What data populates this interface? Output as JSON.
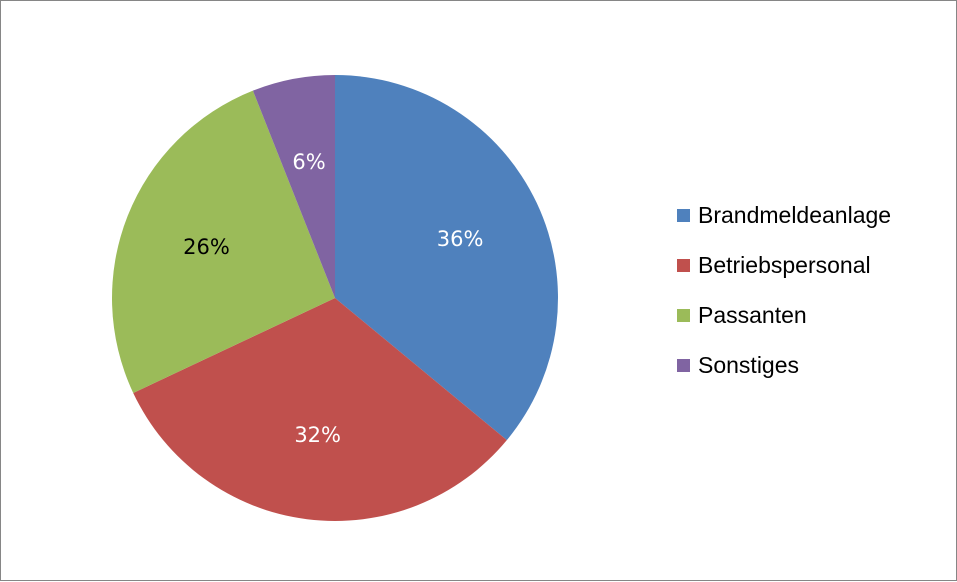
{
  "chart_data": {
    "type": "pie",
    "categories": [
      "Brandmeldeanlage",
      "Betriebspersonal",
      "Passanten",
      "Sonstiges"
    ],
    "values": [
      36,
      32,
      26,
      6
    ],
    "data_labels": [
      "36%",
      "32%",
      "26%",
      "6%"
    ],
    "colors": [
      "#4F81BD",
      "#C0504D",
      "#9BBB59",
      "#8064A2"
    ],
    "label_colors": [
      "#ffffff",
      "#ffffff",
      "#000000",
      "#ffffff"
    ],
    "legend_position": "right"
  }
}
